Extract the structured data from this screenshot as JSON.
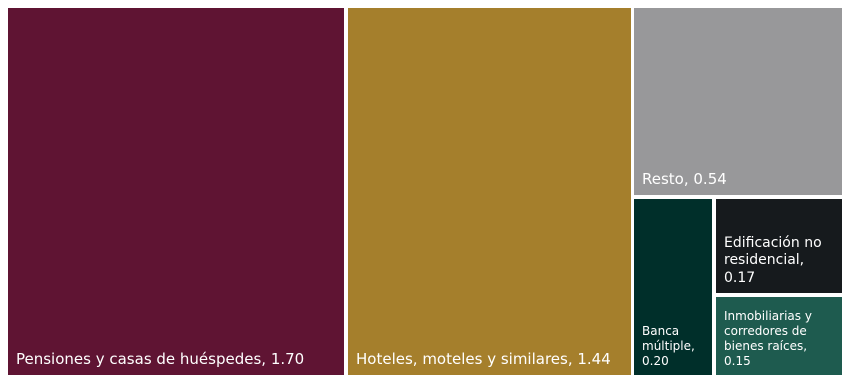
{
  "chart_data": {
    "type": "treemap",
    "items": [
      {
        "label": "Pensiones y casas de huéspedes, 1.70",
        "name": "Pensiones y casas de huéspedes",
        "value": 1.7,
        "color": "#5f1433"
      },
      {
        "label": "Hoteles, moteles y similares, 1.44",
        "name": "Hoteles, moteles y similares",
        "value": 1.44,
        "color": "#a57f2c"
      },
      {
        "label": "Resto, 0.54",
        "name": "Resto",
        "value": 0.54,
        "color": "#98989a"
      },
      {
        "label": "Banca múltiple, 0.20",
        "name": "Banca múltiple",
        "value": 0.2,
        "color": "#002f2a"
      },
      {
        "label": "Edificación no residencial, 0.17",
        "name": "Edificación no residencial",
        "value": 0.17,
        "color": "#161a1d"
      },
      {
        "label": "Inmobiliarias y corredores de bienes raíces, 0.15",
        "name": "Inmobiliarias y corredores de bienes raíces",
        "value": 0.15,
        "color": "#1e5b4f"
      }
    ]
  }
}
